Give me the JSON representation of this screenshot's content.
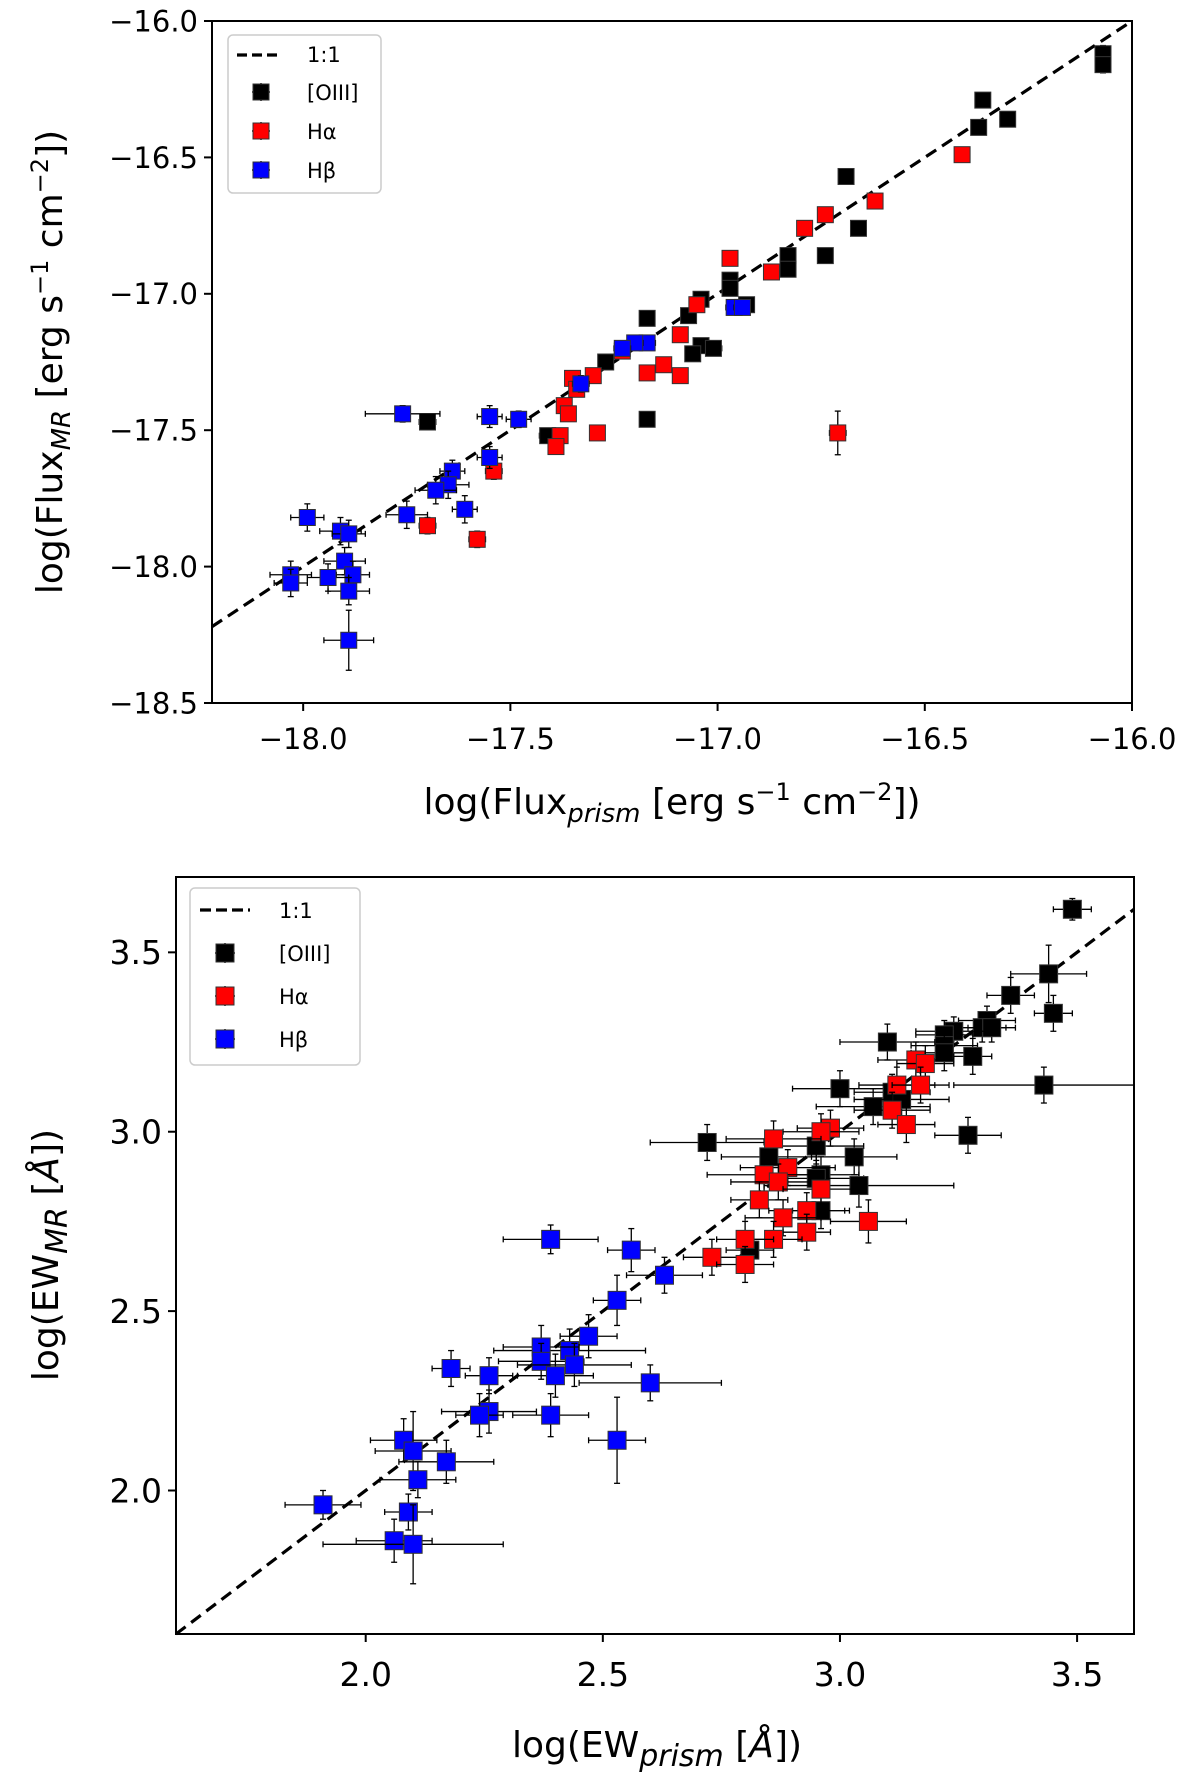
{
  "chart_data": [
    {
      "type": "scatter",
      "title": "",
      "xlabel": "log(Flux_prism [erg s^-1 cm^-2])",
      "ylabel": "log(Flux_MR [erg s^-1 cm^-2])",
      "xlim": [
        -18.22,
        -16.0
      ],
      "ylim": [
        -18.5,
        -16.0
      ],
      "x_ticks": [
        -18.0,
        -17.5,
        -17.0,
        -16.5,
        -16.0
      ],
      "y_ticks": [
        -18.5,
        -18.0,
        -17.5,
        -17.0,
        -16.5,
        -16.0
      ],
      "x_tick_labels": [
        "−18.0",
        "−17.5",
        "−17.0",
        "−16.5",
        "−16.0"
      ],
      "y_tick_labels": [
        "−18.5",
        "−18.0",
        "−17.5",
        "−17.0",
        "−16.5",
        "−16.0"
      ],
      "grid": false,
      "legend_position": "upper-left",
      "one_to_one_label": "1:1",
      "series": [
        {
          "name": "[OIII]",
          "color": "#000000",
          "points": [
            [
              -16.07,
              -16.12,
              0.01,
              0.03
            ],
            [
              -16.07,
              -16.16,
              0.01,
              0.03
            ],
            [
              -16.36,
              -16.29,
              0.01,
              0.02
            ],
            [
              -16.37,
              -16.39,
              0.01,
              0.02
            ],
            [
              -16.3,
              -16.36,
              0.01,
              0.02
            ],
            [
              -16.69,
              -16.57,
              0.01,
              0.02
            ],
            [
              -16.66,
              -16.76,
              0.01,
              0.02
            ],
            [
              -16.83,
              -16.86,
              0.01,
              0.02
            ],
            [
              -16.83,
              -16.91,
              0.01,
              0.02
            ],
            [
              -16.74,
              -16.86,
              0.01,
              0.02
            ],
            [
              -16.97,
              -16.95,
              0.01,
              0.02
            ],
            [
              -16.97,
              -16.98,
              0.01,
              0.02
            ],
            [
              -16.93,
              -17.04,
              0.01,
              0.02
            ],
            [
              -17.07,
              -17.08,
              0.01,
              0.02
            ],
            [
              -17.04,
              -17.02,
              0.01,
              0.02
            ],
            [
              -17.17,
              -17.09,
              0.01,
              0.02
            ],
            [
              -17.04,
              -17.19,
              0.01,
              0.02
            ],
            [
              -17.01,
              -17.2,
              0.02,
              0.02
            ],
            [
              -17.06,
              -17.22,
              0.01,
              0.02
            ],
            [
              -17.27,
              -17.25,
              0.01,
              0.02
            ],
            [
              -17.17,
              -17.46,
              0.01,
              0.02
            ],
            [
              -17.41,
              -17.52,
              0.02,
              0.02
            ],
            [
              -17.7,
              -17.47,
              0.02,
              0.02
            ]
          ]
        },
        {
          "name": "Hα",
          "color": "#ff0000",
          "points": [
            [
              -16.41,
              -16.49,
              0.01,
              0.02
            ],
            [
              -16.62,
              -16.66,
              0.01,
              0.02
            ],
            [
              -16.74,
              -16.71,
              0.01,
              0.02
            ],
            [
              -16.79,
              -16.76,
              0.01,
              0.02
            ],
            [
              -16.87,
              -16.92,
              0.01,
              0.02
            ],
            [
              -16.97,
              -16.87,
              0.01,
              0.02
            ],
            [
              -17.05,
              -17.04,
              0.01,
              0.02
            ],
            [
              -17.09,
              -17.15,
              0.01,
              0.02
            ],
            [
              -17.13,
              -17.26,
              0.01,
              0.02
            ],
            [
              -17.17,
              -17.29,
              0.01,
              0.02
            ],
            [
              -17.09,
              -17.3,
              0.01,
              0.02
            ],
            [
              -17.23,
              -17.21,
              0.01,
              0.02
            ],
            [
              -17.3,
              -17.3,
              0.01,
              0.02
            ],
            [
              -17.35,
              -17.31,
              0.01,
              0.02
            ],
            [
              -17.34,
              -17.35,
              0.01,
              0.02
            ],
            [
              -17.37,
              -17.41,
              0.01,
              0.02
            ],
            [
              -17.36,
              -17.44,
              0.01,
              0.02
            ],
            [
              -17.38,
              -17.52,
              0.01,
              0.02
            ],
            [
              -17.39,
              -17.56,
              0.01,
              0.02
            ],
            [
              -17.29,
              -17.51,
              0.01,
              0.02
            ],
            [
              -16.71,
              -17.51,
              0.02,
              0.08
            ],
            [
              -17.54,
              -17.65,
              0.02,
              0.03
            ],
            [
              -17.58,
              -17.9,
              0.02,
              0.03
            ],
            [
              -17.7,
              -17.85,
              0.02,
              0.03
            ]
          ]
        },
        {
          "name": "Hβ",
          "color": "#0000ff",
          "points": [
            [
              -16.96,
              -17.05,
              0.02,
              0.02
            ],
            [
              -16.94,
              -17.05,
              0.02,
              0.02
            ],
            [
              -17.17,
              -17.18,
              0.02,
              0.02
            ],
            [
              -17.2,
              -17.18,
              0.02,
              0.02
            ],
            [
              -17.23,
              -17.2,
              0.02,
              0.02
            ],
            [
              -17.33,
              -17.33,
              0.02,
              0.03
            ],
            [
              -17.48,
              -17.46,
              0.03,
              0.03
            ],
            [
              -17.55,
              -17.45,
              0.03,
              0.04
            ],
            [
              -17.76,
              -17.44,
              0.09,
              0.03
            ],
            [
              -17.55,
              -17.6,
              0.03,
              0.04
            ],
            [
              -17.64,
              -17.65,
              0.03,
              0.04
            ],
            [
              -17.65,
              -17.7,
              0.05,
              0.05
            ],
            [
              -17.68,
              -17.72,
              0.05,
              0.05
            ],
            [
              -17.61,
              -17.79,
              0.03,
              0.05
            ],
            [
              -17.75,
              -17.81,
              0.05,
              0.05
            ],
            [
              -17.99,
              -17.82,
              0.04,
              0.05
            ],
            [
              -17.91,
              -17.87,
              0.05,
              0.05
            ],
            [
              -17.89,
              -17.88,
              0.04,
              0.05
            ],
            [
              -17.9,
              -17.98,
              0.05,
              0.05
            ],
            [
              -17.88,
              -18.03,
              0.04,
              0.05
            ],
            [
              -17.94,
              -18.04,
              0.05,
              0.05
            ],
            [
              -18.03,
              -18.03,
              0.05,
              0.05
            ],
            [
              -18.03,
              -18.06,
              0.04,
              0.05
            ],
            [
              -17.89,
              -18.09,
              0.05,
              0.05
            ],
            [
              -17.89,
              -18.27,
              0.06,
              0.11
            ]
          ]
        }
      ]
    },
    {
      "type": "scatter",
      "title": "",
      "xlabel": "log(EW_prism [Å])",
      "ylabel": "log(EW_MR [Å])",
      "xlim": [
        1.6,
        3.62
      ],
      "ylim": [
        1.6,
        3.71
      ],
      "x_ticks": [
        2.0,
        2.5,
        3.0,
        3.5
      ],
      "y_ticks": [
        2.0,
        2.5,
        3.0,
        3.5
      ],
      "x_tick_labels": [
        "2.0",
        "2.5",
        "3.0",
        "3.5"
      ],
      "y_tick_labels": [
        "2.0",
        "2.5",
        "3.0",
        "3.5"
      ],
      "grid": false,
      "legend_position": "upper-left",
      "one_to_one_label": "1:1",
      "series": [
        {
          "name": "[OIII]",
          "color": "#000000",
          "points": [
            [
              3.49,
              3.62,
              0.04,
              0.03
            ],
            [
              3.44,
              3.44,
              0.08,
              0.08
            ],
            [
              3.45,
              3.33,
              0.04,
              0.05
            ],
            [
              3.36,
              3.38,
              0.05,
              0.05
            ],
            [
              3.31,
              3.31,
              0.06,
              0.04
            ],
            [
              3.3,
              3.29,
              0.05,
              0.04
            ],
            [
              3.32,
              3.29,
              0.05,
              0.04
            ],
            [
              3.24,
              3.28,
              0.08,
              0.04
            ],
            [
              3.22,
              3.27,
              0.06,
              0.04
            ],
            [
              3.22,
              3.24,
              0.07,
              0.04
            ],
            [
              3.22,
              3.22,
              0.07,
              0.05
            ],
            [
              3.28,
              3.21,
              0.04,
              0.05
            ],
            [
              3.1,
              3.25,
              0.1,
              0.05
            ],
            [
              3.43,
              3.13,
              0.19,
              0.05
            ],
            [
              3.0,
              3.12,
              0.1,
              0.05
            ],
            [
              3.27,
              2.99,
              0.07,
              0.05
            ],
            [
              3.07,
              3.07,
              0.12,
              0.05
            ],
            [
              3.11,
              3.11,
              0.08,
              0.05
            ],
            [
              3.13,
              3.09,
              0.1,
              0.05
            ],
            [
              2.95,
              2.96,
              0.1,
              0.05
            ],
            [
              2.72,
              2.97,
              0.12,
              0.05
            ],
            [
              2.85,
              2.93,
              0.1,
              0.06
            ],
            [
              3.03,
              2.93,
              0.09,
              0.05
            ],
            [
              2.96,
              2.88,
              0.08,
              0.05
            ],
            [
              2.95,
              2.87,
              0.1,
              0.05
            ],
            [
              3.04,
              2.85,
              0.2,
              0.06
            ],
            [
              2.96,
              2.78,
              0.06,
              0.05
            ],
            [
              2.81,
              2.67,
              0.05,
              0.05
            ]
          ]
        },
        {
          "name": "Hα",
          "color": "#ff0000",
          "points": [
            [
              3.16,
              3.2,
              0.08,
              0.05
            ],
            [
              3.18,
              3.19,
              0.06,
              0.05
            ],
            [
              3.12,
              3.13,
              0.08,
              0.05
            ],
            [
              3.17,
              3.13,
              0.06,
              0.05
            ],
            [
              3.11,
              3.06,
              0.08,
              0.05
            ],
            [
              3.14,
              3.02,
              0.06,
              0.05
            ],
            [
              2.98,
              3.01,
              0.07,
              0.05
            ],
            [
              2.96,
              3.0,
              0.08,
              0.05
            ],
            [
              2.86,
              2.98,
              0.1,
              0.05
            ],
            [
              2.89,
              2.9,
              0.1,
              0.05
            ],
            [
              2.84,
              2.88,
              0.12,
              0.05
            ],
            [
              2.87,
              2.86,
              0.1,
              0.05
            ],
            [
              2.96,
              2.84,
              0.08,
              0.05
            ],
            [
              2.83,
              2.81,
              0.06,
              0.05
            ],
            [
              2.93,
              2.78,
              0.08,
              0.05
            ],
            [
              2.88,
              2.76,
              0.08,
              0.05
            ],
            [
              3.06,
              2.75,
              0.08,
              0.06
            ],
            [
              2.93,
              2.72,
              0.05,
              0.05
            ],
            [
              2.86,
              2.7,
              0.06,
              0.05
            ],
            [
              2.8,
              2.7,
              0.06,
              0.05
            ],
            [
              2.73,
              2.65,
              0.06,
              0.05
            ],
            [
              2.8,
              2.63,
              0.06,
              0.05
            ]
          ]
        },
        {
          "name": "Hβ",
          "color": "#0000ff",
          "points": [
            [
              2.39,
              2.7,
              0.1,
              0.04
            ],
            [
              2.56,
              2.67,
              0.05,
              0.06
            ],
            [
              2.63,
              2.6,
              0.08,
              0.05
            ],
            [
              2.53,
              2.53,
              0.05,
              0.07
            ],
            [
              2.47,
              2.43,
              0.06,
              0.06
            ],
            [
              2.43,
              2.39,
              0.16,
              0.06
            ],
            [
              2.37,
              2.4,
              0.08,
              0.06
            ],
            [
              2.37,
              2.36,
              0.09,
              0.05
            ],
            [
              2.44,
              2.35,
              0.12,
              0.06
            ],
            [
              2.4,
              2.32,
              0.08,
              0.06
            ],
            [
              2.26,
              2.32,
              0.05,
              0.05
            ],
            [
              2.18,
              2.34,
              0.04,
              0.05
            ],
            [
              2.6,
              2.3,
              0.15,
              0.05
            ],
            [
              2.26,
              2.22,
              0.1,
              0.06
            ],
            [
              2.24,
              2.21,
              0.05,
              0.06
            ],
            [
              2.39,
              2.21,
              0.08,
              0.06
            ],
            [
              2.53,
              2.14,
              0.06,
              0.12
            ],
            [
              2.08,
              2.14,
              0.07,
              0.06
            ],
            [
              2.1,
              2.11,
              0.08,
              0.11
            ],
            [
              2.17,
              2.08,
              0.1,
              0.06
            ],
            [
              2.11,
              2.03,
              0.08,
              0.05
            ],
            [
              2.09,
              1.94,
              0.05,
              0.05
            ],
            [
              1.91,
              1.96,
              0.08,
              0.04
            ],
            [
              2.06,
              1.86,
              0.08,
              0.06
            ],
            [
              2.1,
              1.85,
              0.19,
              0.11
            ]
          ]
        }
      ]
    }
  ]
}
